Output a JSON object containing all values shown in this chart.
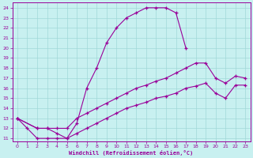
{
  "xlabel": "Windchill (Refroidissement éolien,°C)",
  "bg_color": "#c8f0f0",
  "line_color": "#990099",
  "grid_color": "#a0d8d8",
  "xlim": [
    -0.5,
    23.5
  ],
  "ylim": [
    10.7,
    24.5
  ],
  "xticks": [
    0,
    1,
    2,
    3,
    4,
    5,
    6,
    7,
    8,
    9,
    10,
    11,
    12,
    13,
    14,
    15,
    16,
    17,
    18,
    19,
    20,
    21,
    22,
    23
  ],
  "yticks": [
    11,
    12,
    13,
    14,
    15,
    16,
    17,
    18,
    19,
    20,
    21,
    22,
    23,
    24
  ],
  "line1_x": [
    0,
    1,
    2,
    3,
    4,
    5,
    6,
    7,
    8,
    9,
    10,
    11,
    12,
    13,
    14,
    15,
    16,
    17
  ],
  "line1_y": [
    13,
    12,
    11,
    11,
    11,
    11,
    12.5,
    16,
    18,
    20.5,
    22,
    23,
    23.5,
    24,
    24,
    24,
    23.5,
    20
  ],
  "line2_x": [
    0,
    2,
    3,
    4,
    5,
    6,
    7,
    8,
    9,
    10,
    11,
    12,
    13,
    14,
    15,
    16,
    17,
    18,
    19,
    20,
    21,
    22,
    23
  ],
  "line2_y": [
    13,
    12,
    12,
    12,
    12,
    13,
    13.5,
    14,
    14.5,
    15,
    15.5,
    16,
    16.3,
    16.7,
    17,
    17.5,
    18,
    18.5,
    18.5,
    17,
    16.5,
    17.2,
    17
  ],
  "line3_x": [
    0,
    2,
    3,
    4,
    5,
    6,
    7,
    8,
    9,
    10,
    11,
    12,
    13,
    14,
    15,
    16,
    17,
    18,
    19,
    20,
    21,
    22,
    23
  ],
  "line3_y": [
    13,
    12,
    12,
    11.5,
    11,
    11.5,
    12,
    12.5,
    13,
    13.5,
    14,
    14.3,
    14.6,
    15,
    15.2,
    15.5,
    16,
    16.2,
    16.5,
    15.5,
    15.0,
    16.3,
    16.3
  ]
}
